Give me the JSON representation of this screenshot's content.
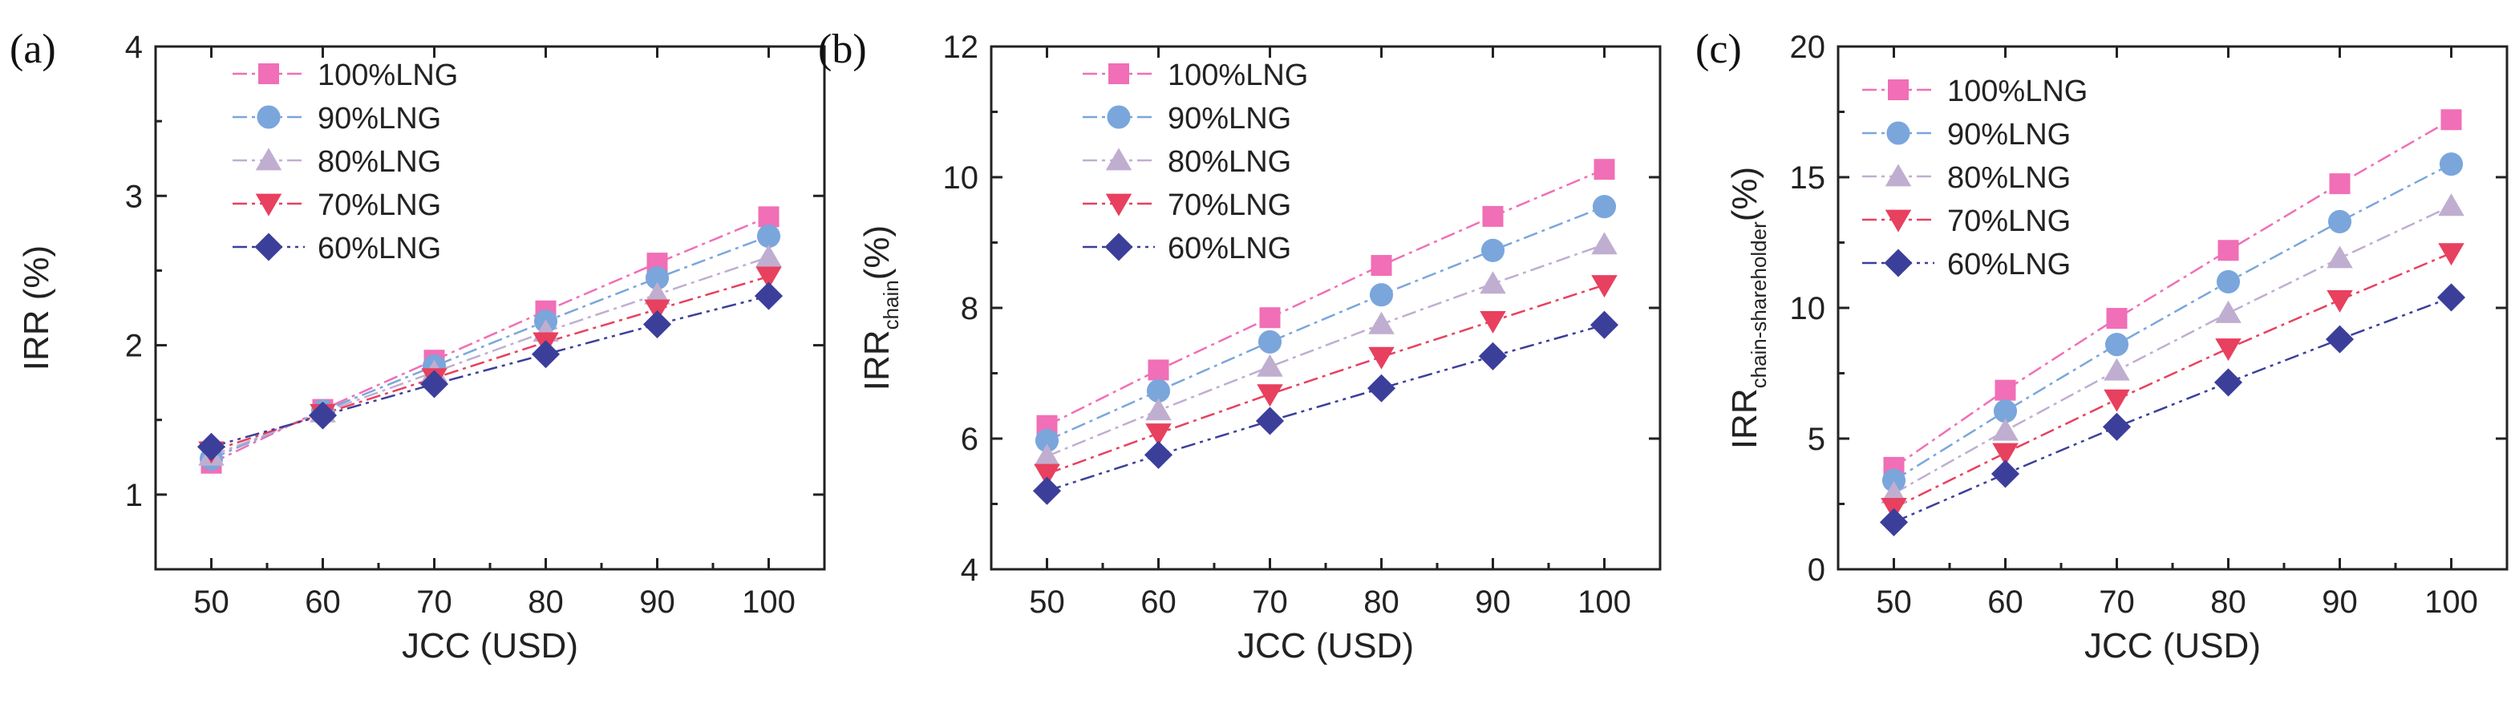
{
  "chart_data": [
    {
      "type": "line",
      "panel_label": "(a)",
      "ylabel": "IRR (%)",
      "ylabel_sub": "",
      "ylabel_suffix": "",
      "xlabel": "JCC (USD)",
      "ylim": [
        0.5,
        4
      ],
      "yticks": [
        1,
        2,
        3,
        4
      ],
      "x": [
        50,
        60,
        70,
        80,
        90,
        100
      ],
      "series": [
        {
          "name": "100%LNG",
          "color": "#f06fb6",
          "marker": "square",
          "values": [
            1.21,
            1.57,
            1.9,
            2.23,
            2.55,
            2.86
          ]
        },
        {
          "name": "90%LNG",
          "color": "#7aa6dc",
          "marker": "circle",
          "values": [
            1.24,
            1.56,
            1.86,
            2.16,
            2.45,
            2.73
          ]
        },
        {
          "name": "80%LNG",
          "color": "#c0aed0",
          "marker": "triangle",
          "values": [
            1.26,
            1.55,
            1.82,
            2.09,
            2.34,
            2.59
          ]
        },
        {
          "name": "70%LNG",
          "color": "#e8405f",
          "marker": "tri-down",
          "values": [
            1.29,
            1.54,
            1.78,
            2.02,
            2.24,
            2.46
          ]
        },
        {
          "name": "60%LNG",
          "color": "#3b3f9a",
          "marker": "diamond",
          "values": [
            1.32,
            1.53,
            1.74,
            1.94,
            2.14,
            2.33
          ]
        }
      ]
    },
    {
      "type": "line",
      "panel_label": "(b)",
      "ylabel": "IRR",
      "ylabel_sub": "chain",
      "ylabel_suffix": "(%)",
      "xlabel": "JCC (USD)",
      "ylim": [
        4,
        12
      ],
      "yticks": [
        4,
        6,
        8,
        10,
        12
      ],
      "x": [
        50,
        60,
        70,
        80,
        90,
        100
      ],
      "series": [
        {
          "name": "100%LNG",
          "color": "#f06fb6",
          "marker": "square",
          "values": [
            6.2,
            7.05,
            7.85,
            8.65,
            9.4,
            10.12
          ]
        },
        {
          "name": "90%LNG",
          "color": "#7aa6dc",
          "marker": "circle",
          "values": [
            5.97,
            6.73,
            7.48,
            8.2,
            8.88,
            9.55
          ]
        },
        {
          "name": "80%LNG",
          "color": "#c0aed0",
          "marker": "triangle",
          "values": [
            5.73,
            6.43,
            7.1,
            7.75,
            8.37,
            8.97
          ]
        },
        {
          "name": "70%LNG",
          "color": "#e8405f",
          "marker": "tri-down",
          "values": [
            5.46,
            6.08,
            6.68,
            7.25,
            7.8,
            8.35
          ]
        },
        {
          "name": "60%LNG",
          "color": "#3b3f9a",
          "marker": "diamond",
          "values": [
            5.2,
            5.75,
            6.27,
            6.77,
            7.26,
            7.74
          ]
        }
      ]
    },
    {
      "type": "line",
      "panel_label": "(c)",
      "ylabel": "IRR",
      "ylabel_sub": "chain-shareholder",
      "ylabel_suffix": "(%)",
      "xlabel": "JCC (USD)",
      "ylim": [
        0,
        20
      ],
      "yticks": [
        0,
        5,
        10,
        15,
        20
      ],
      "x": [
        50,
        60,
        70,
        80,
        90,
        100
      ],
      "series": [
        {
          "name": "100%LNG",
          "color": "#f06fb6",
          "marker": "square",
          "values": [
            3.9,
            6.85,
            9.6,
            12.2,
            14.75,
            17.2
          ]
        },
        {
          "name": "90%LNG",
          "color": "#7aa6dc",
          "marker": "circle",
          "values": [
            3.4,
            6.05,
            8.6,
            11.0,
            13.3,
            15.5
          ]
        },
        {
          "name": "80%LNG",
          "color": "#c0aed0",
          "marker": "triangle",
          "values": [
            2.9,
            5.3,
            7.6,
            9.8,
            11.9,
            13.9
          ]
        },
        {
          "name": "70%LNG",
          "color": "#e8405f",
          "marker": "tri-down",
          "values": [
            2.35,
            4.45,
            6.5,
            8.45,
            10.3,
            12.1
          ]
        },
        {
          "name": "60%LNG",
          "color": "#3b3f9a",
          "marker": "diamond",
          "values": [
            1.8,
            3.65,
            5.45,
            7.15,
            8.8,
            10.4
          ]
        }
      ]
    }
  ]
}
